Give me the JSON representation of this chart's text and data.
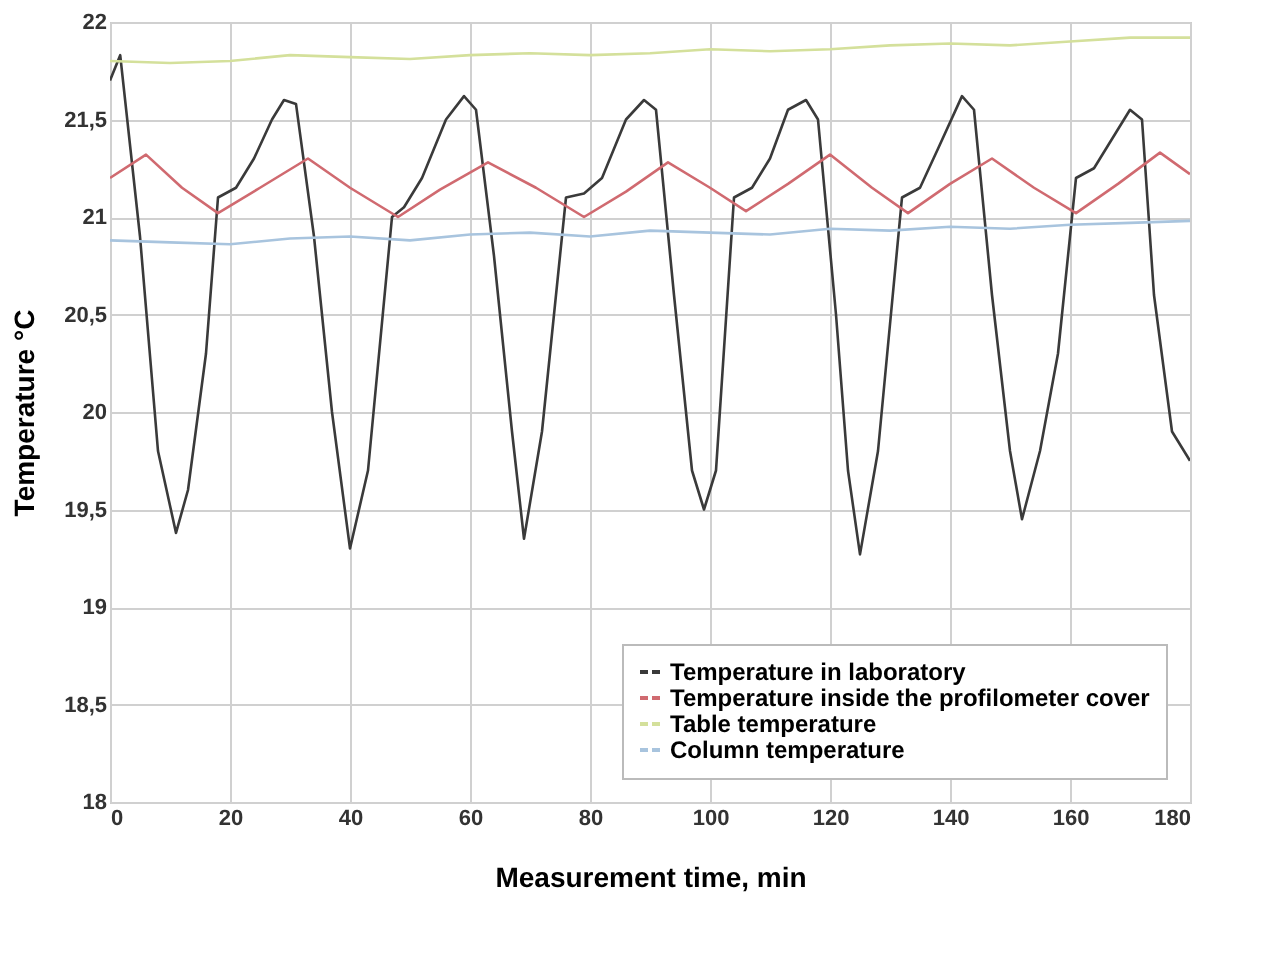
{
  "chart_data": {
    "type": "line",
    "xlabel": "Measurement time,  min",
    "ylabel": "Temperature   °C",
    "xlim": [
      0,
      180
    ],
    "xticks": [
      0,
      20,
      40,
      60,
      80,
      100,
      120,
      140,
      160,
      180
    ],
    "ylim": [
      18,
      22
    ],
    "yticks": [
      18,
      {
        "value": 18.5,
        "label": "18,5"
      },
      19,
      {
        "value": 19.5,
        "label": "19,5"
      },
      20,
      {
        "value": 20.5,
        "label": "20,5"
      },
      21,
      {
        "value": 21.5,
        "label": "21,5"
      },
      22
    ],
    "grid": true,
    "legend": "bottom right",
    "line_style": "solid",
    "marker": "none",
    "series": [
      {
        "name": "Temperature in laboratory",
        "color": "#3a3a3a",
        "x": [
          0,
          1.7,
          5,
          8,
          11,
          13,
          16,
          18,
          21,
          24,
          27,
          29,
          31,
          34,
          37,
          40,
          43,
          47,
          49,
          52,
          56,
          59,
          61,
          64,
          67,
          69,
          72,
          76,
          79,
          82,
          86,
          89,
          91,
          94,
          97,
          99,
          101,
          104,
          107,
          110,
          113,
          116,
          118,
          121,
          123,
          125,
          128,
          132,
          135,
          138,
          142,
          144,
          147,
          150,
          152,
          155,
          158,
          161,
          164,
          167,
          170,
          172,
          174,
          177,
          178,
          180
        ],
        "values": [
          21.7,
          21.83,
          20.9,
          19.8,
          19.38,
          19.6,
          20.3,
          21.1,
          21.15,
          21.3,
          21.5,
          21.6,
          21.58,
          20.9,
          20.0,
          19.3,
          19.7,
          21.0,
          21.05,
          21.2,
          21.5,
          21.62,
          21.55,
          20.8,
          19.9,
          19.35,
          19.9,
          21.1,
          21.12,
          21.2,
          21.5,
          21.6,
          21.55,
          20.6,
          19.7,
          19.5,
          19.7,
          21.1,
          21.15,
          21.3,
          21.55,
          21.6,
          21.5,
          20.5,
          19.7,
          19.27,
          19.8,
          21.1,
          21.15,
          21.35,
          21.62,
          21.55,
          20.6,
          19.8,
          19.45,
          19.8,
          20.3,
          21.2,
          21.25,
          21.4,
          21.55,
          21.5,
          20.6,
          19.9,
          19.85,
          19.75
        ]
      },
      {
        "name": "Temperature inside the profilometer cover",
        "color": "#d06a70",
        "x": [
          0,
          6,
          12,
          18,
          25,
          33,
          40,
          48,
          55,
          63,
          71,
          79,
          86,
          93,
          100,
          106,
          113,
          120,
          127,
          133,
          140,
          147,
          154,
          161,
          168,
          175,
          180
        ],
        "values": [
          21.2,
          21.32,
          21.15,
          21.02,
          21.15,
          21.3,
          21.15,
          21.0,
          21.14,
          21.28,
          21.15,
          21.0,
          21.13,
          21.28,
          21.15,
          21.03,
          21.17,
          21.32,
          21.15,
          21.02,
          21.17,
          21.3,
          21.15,
          21.02,
          21.17,
          21.33,
          21.22
        ]
      },
      {
        "name": "Table temperature",
        "color": "#d4e09b",
        "x": [
          0,
          10,
          20,
          30,
          40,
          50,
          60,
          70,
          80,
          90,
          100,
          110,
          120,
          130,
          140,
          150,
          160,
          170,
          180
        ],
        "values": [
          21.8,
          21.79,
          21.8,
          21.83,
          21.82,
          21.81,
          21.83,
          21.84,
          21.83,
          21.84,
          21.86,
          21.85,
          21.86,
          21.88,
          21.89,
          21.88,
          21.9,
          21.92,
          21.92
        ]
      },
      {
        "name": "Column temperature",
        "color": "#a8c4de",
        "x": [
          0,
          10,
          20,
          30,
          40,
          50,
          60,
          70,
          80,
          90,
          100,
          110,
          120,
          130,
          140,
          150,
          160,
          170,
          180
        ],
        "values": [
          20.88,
          20.87,
          20.86,
          20.89,
          20.9,
          20.88,
          20.91,
          20.92,
          20.9,
          20.93,
          20.92,
          20.91,
          20.94,
          20.93,
          20.95,
          20.94,
          20.96,
          20.97,
          20.98
        ]
      }
    ]
  }
}
